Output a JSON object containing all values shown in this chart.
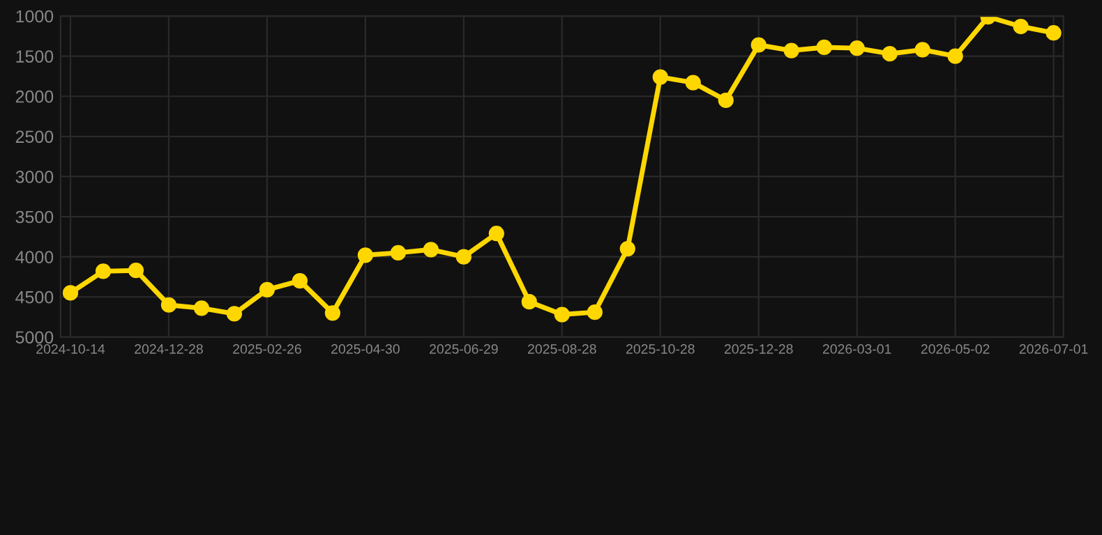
{
  "chart_data": {
    "type": "line",
    "categories": [
      "2024-10-14",
      null,
      null,
      "2024-12-28",
      null,
      null,
      "2025-02-26",
      null,
      null,
      "2025-04-30",
      null,
      null,
      "2025-06-29",
      null,
      null,
      "2025-08-28",
      null,
      null,
      "2025-10-28",
      null,
      null,
      "2025-12-28",
      null,
      null,
      "2026-03-01",
      null,
      null,
      "2026-05-02",
      null,
      null,
      "2026-07-01"
    ],
    "series": [
      {
        "color": "#ffd700",
        "values": [
          4450,
          4180,
          4170,
          4600,
          4640,
          4710,
          4410,
          4300,
          4700,
          3980,
          3950,
          3910,
          4000,
          3710,
          4560,
          4720,
          4690,
          3900,
          1760,
          1830,
          2050,
          1360,
          1430,
          1390,
          1400,
          1470,
          1420,
          1500,
          1010,
          1130,
          1210
        ]
      }
    ],
    "ylim": [
      5000,
      1000
    ],
    "yticks": [
      1000,
      1500,
      2000,
      2500,
      3000,
      3500,
      4000,
      4500,
      5000
    ],
    "grid": true,
    "marker": "circle",
    "line_style": "solid"
  }
}
